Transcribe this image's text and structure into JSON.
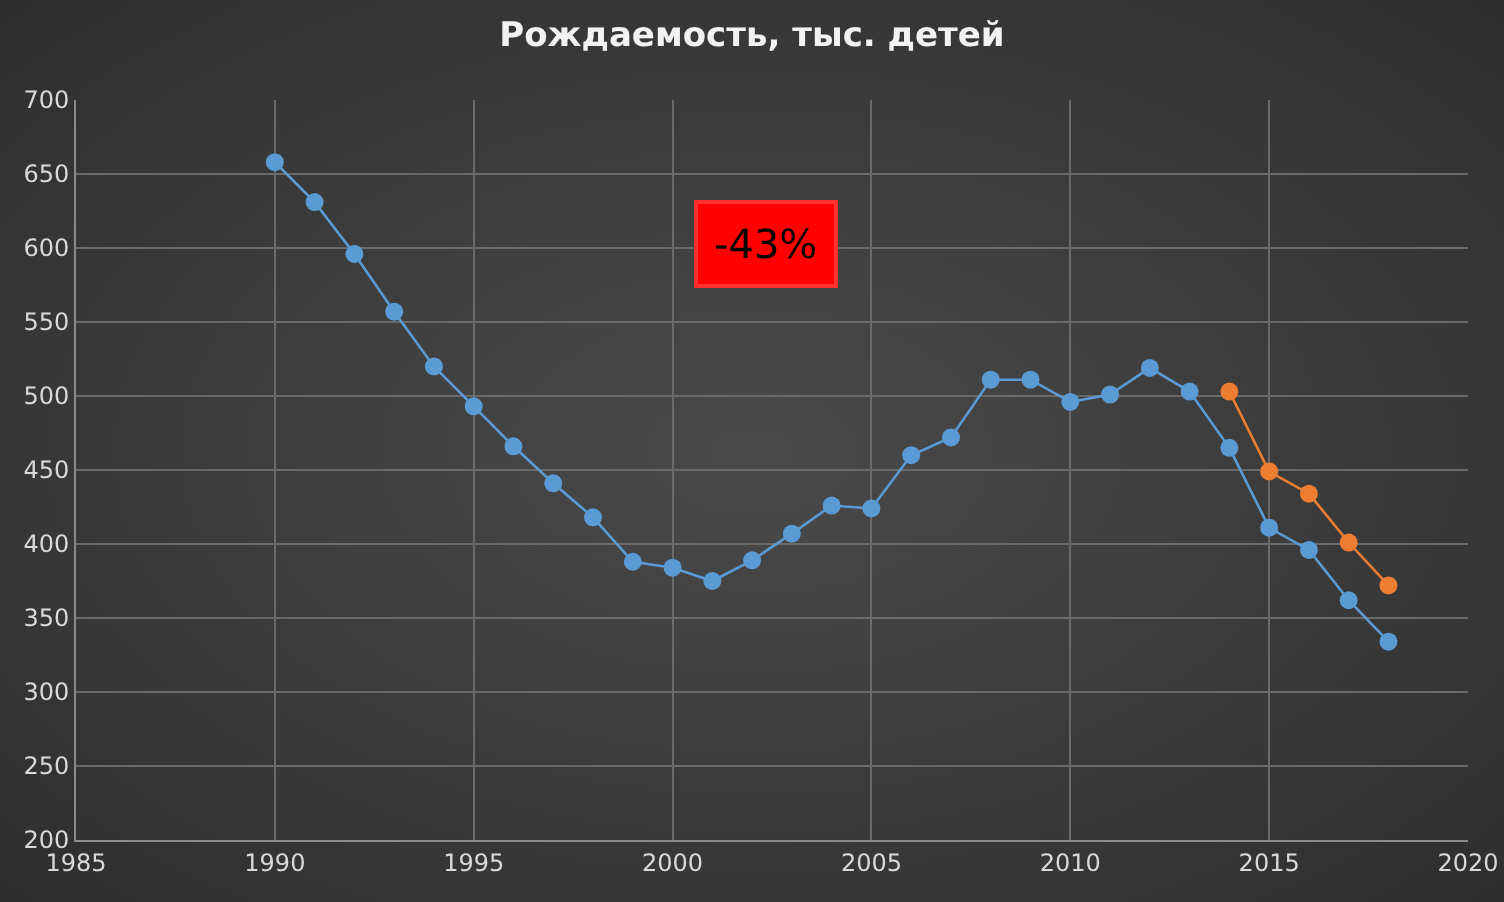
{
  "chart_data": {
    "type": "line",
    "title": "Рождаемость, тыс. детей",
    "xlim": [
      1985,
      2020
    ],
    "xticks": [
      1985,
      1990,
      1995,
      2000,
      2005,
      2010,
      2015,
      2020
    ],
    "ylim": [
      200,
      700
    ],
    "yticks": [
      200,
      250,
      300,
      350,
      400,
      450,
      500,
      550,
      600,
      650,
      700
    ],
    "grid": true,
    "marker": "circle",
    "line_style": "solid",
    "annotations": [
      "-43%"
    ],
    "series": [
      {
        "color": "#5b9bd5",
        "x": [
          1990,
          1991,
          1992,
          1993,
          1994,
          1995,
          1996,
          1997,
          1998,
          1999,
          2000,
          2001,
          2002,
          2003,
          2004,
          2005,
          2006,
          2007,
          2008,
          2009,
          2010,
          2011,
          2012,
          2013,
          2014,
          2015,
          2016,
          2017,
          2018
        ],
        "values": [
          658,
          631,
          596,
          557,
          520,
          493,
          466,
          441,
          418,
          388,
          384,
          375,
          389,
          407,
          426,
          424,
          460,
          472,
          511,
          511,
          496,
          501,
          519,
          503,
          465,
          411,
          396,
          362,
          334
        ]
      },
      {
        "color": "#ed7d31",
        "x": [
          2014,
          2015,
          2016,
          2017,
          2018
        ],
        "values": [
          503,
          449,
          434,
          401,
          372
        ]
      }
    ]
  }
}
